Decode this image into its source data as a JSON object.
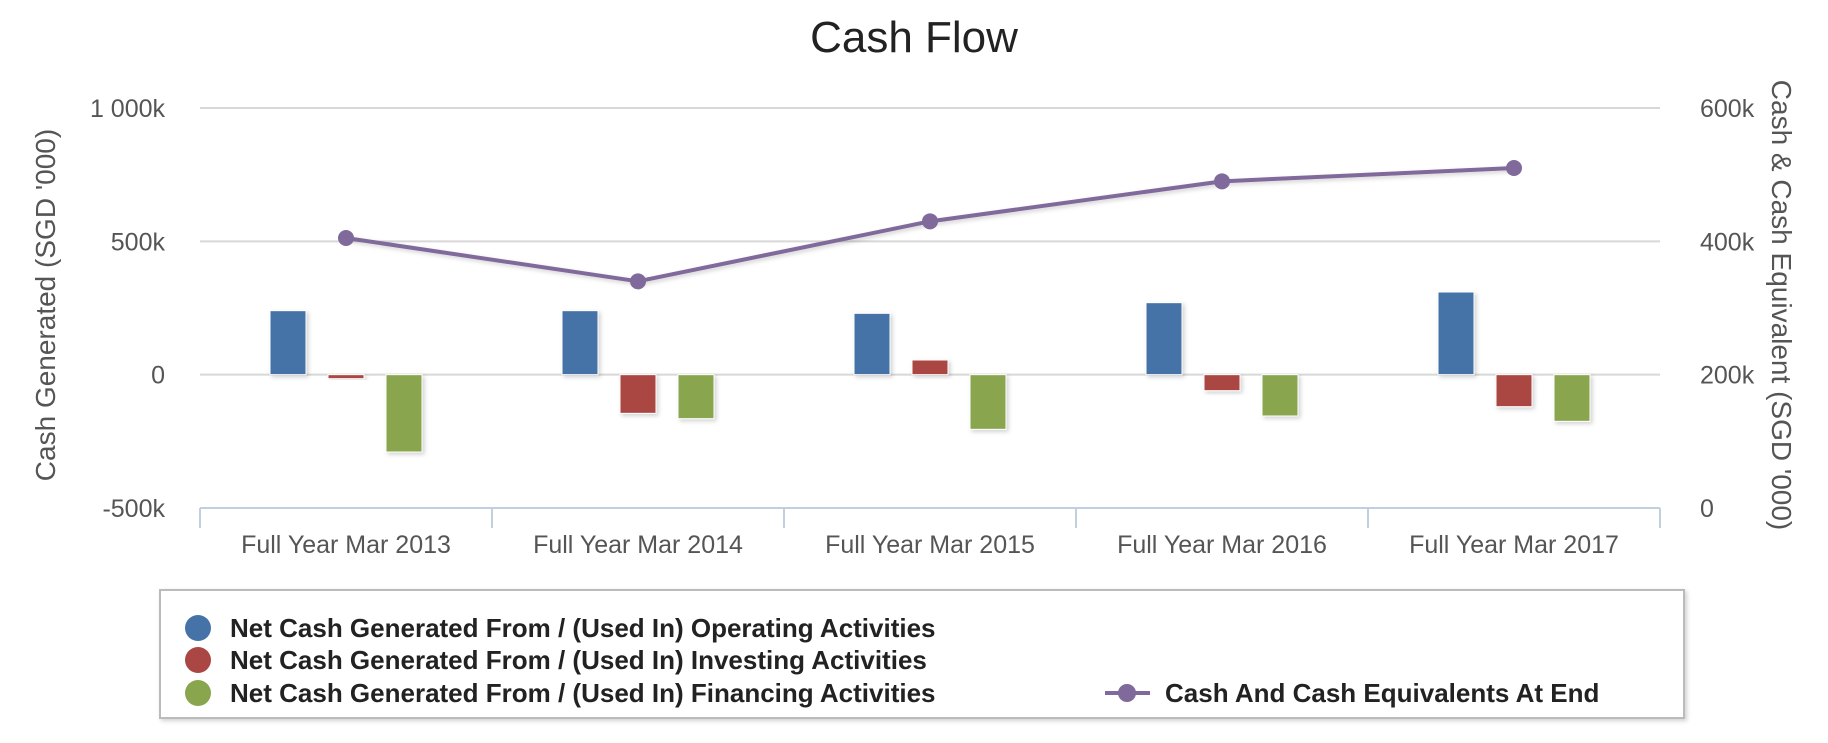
{
  "chart_data": {
    "type": "bar",
    "title": "Cash Flow",
    "categories": [
      "Full Year Mar 2013",
      "Full Year Mar 2014",
      "Full Year Mar 2015",
      "Full Year Mar 2016",
      "Full Year Mar 2017"
    ],
    "ylabel_left": "Cash Generated (SGD '000)",
    "ylabel_right": "Cash & Cash Equivalent (SGD '000)",
    "ylim_left": [
      -500000,
      1000000
    ],
    "ylim_right": [
      0,
      600000
    ],
    "yticks_left": [
      {
        "value": -500000,
        "label": "-500k"
      },
      {
        "value": 0,
        "label": "0"
      },
      {
        "value": 500000,
        "label": "500k"
      },
      {
        "value": 1000000,
        "label": "1 000k"
      }
    ],
    "yticks_right": [
      {
        "value": 0,
        "label": "0"
      },
      {
        "value": 200000,
        "label": "200k"
      },
      {
        "value": 400000,
        "label": "400k"
      },
      {
        "value": 600000,
        "label": "600k"
      }
    ],
    "grid": true,
    "legend_position": "bottom",
    "series": [
      {
        "name": "Net Cash Generated From / (Used In) Operating Activities",
        "type": "bar",
        "axis": "left",
        "color": "#4572a7",
        "values": [
          240000,
          240000,
          230000,
          270000,
          310000
        ]
      },
      {
        "name": "Net Cash Generated From / (Used In) Investing Activities",
        "type": "bar",
        "axis": "left",
        "color": "#aa4643",
        "values": [
          -15000,
          -145000,
          55000,
          -60000,
          -120000
        ]
      },
      {
        "name": "Net Cash Generated From / (Used In) Financing Activities",
        "type": "bar",
        "axis": "left",
        "color": "#89a54e",
        "values": [
          -290000,
          -165000,
          -205000,
          -155000,
          -175000
        ]
      },
      {
        "name": "Cash And Cash Equivalents At End",
        "type": "line",
        "axis": "right",
        "color": "#80699b",
        "values": [
          405000,
          340000,
          430000,
          490000,
          510000
        ]
      }
    ]
  }
}
